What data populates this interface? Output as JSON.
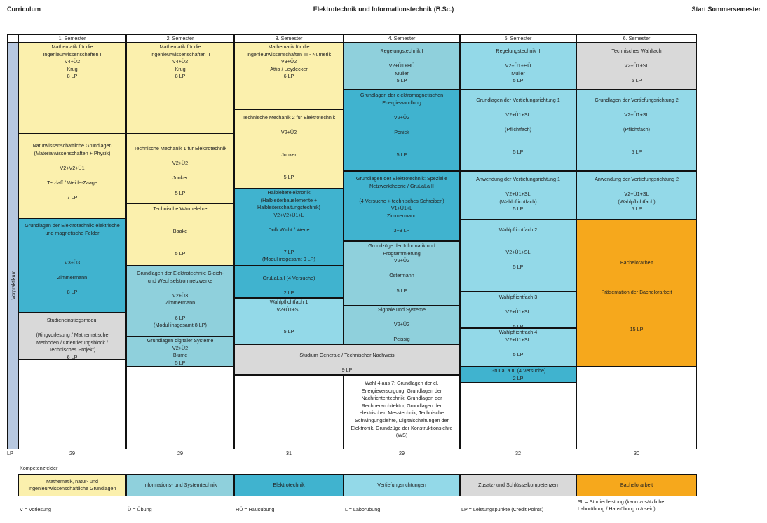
{
  "header": {
    "left": "Curriculum",
    "center": "Elektrotechnik und Informationstechnik (B.Sc.)",
    "right": "Start Sommersemester"
  },
  "semesters": [
    "1. Semester",
    "2. Semester",
    "3. Semester",
    "4. Semester",
    "5. Semester",
    "6. Semester"
  ],
  "vorpraktikum": "Vorpraktikum",
  "lp_label": "LP",
  "lp_totals": [
    "29",
    "29",
    "31",
    "29",
    "32",
    "30"
  ],
  "modules": {
    "s1_math": "Mathematik für die\nIngenieurwissenschaften I\nV4+Ü2\nKrug\n8 LP",
    "s1_natur": "Naturwissenschaftliche Grundlagen\n(Materialwissenschaften + Physik)\n\nV2+V2+Ü1\n\nTetzlaff / Weide-Zaage\n\n7 LP",
    "s1_get": "Grundlagen der Elektrotechnik: elektrische\nund magnetische Felder\n\n\n\nV3+Ü3\n\nZimmermann\n\n8 LP",
    "s1_stud": "Studieneinstiegsmodul\n\n(Ringvorlesung / Mathematische\nMethoden / Orientierungsblock /\nTechnisches Projekt)\n6 LP",
    "s2_math": "Mathematik für die\nIngenieurwissenschaften II\nV4+Ü2\nKrug\n8 LP",
    "s2_tm1": "Technische Mechanik 1 für Elektrotechnik\n\nV2+Ü2\n\nJunker\n\n5 LP",
    "s2_waerme": "Technische Wärmelehre\n\n\nBaake\n\n\n5 LP",
    "s2_gleich": "Grundlagen der Elektrotechnik: Gleich-\nund Wechselstromnetzwerke\n\nV2+Ü3\nZimmermann\n\n6 LP\n(Modul insgesamt 8 LP)",
    "s2_digital": "Grundlagen digitaler Systeme\nV2+Ü2\nBlume\n5 LP",
    "s3_math": "Mathematik für die\nIngenieurwissenschaften III - Numerik\nV3+Ü2\nAttia / Leydecker\n6 LP",
    "s3_tm2": "Technische Mechanik 2 für Elektrotechnik\n\nV2+Ü2\n\n\nJunker\n\n\n5 LP",
    "s3_halbleiter": "Halbleiterelektronik\n(Halbleiterbauelemente +\nHalbleiterschaltungstechnik)\nV2+V2+Ü1+L\n\nDoll/ Wicht / Werle\n\n\n7 LP\n(Modul insgesamt 9 LP)",
    "s3_grulala1": "GruLaLa I (4 Versuche)\n\n2 LP",
    "s3_wpf1": "Wahlpflichtfach 1\nV2+Ü1+SL\n\n\n5 LP",
    "s34_studium": "Studium Generale / Technischer Nachweis\n\n9 LP",
    "s4_regel": "Regelungstechnik I\n\nV2+Ü1+HÜ\nMüller\n5 LP",
    "s4_emag": "Grundlagen der elektromagnetischen\nEnergiewandlung\n\nV2+Ü2\n\nPonick\n\n\n5 LP",
    "s4_netzwerk": "Grundlagen der Elektrotechnik: Spezielle\nNetzwerktheorie / GruLaLa II\n\n(4 Versuche + technisches Schreiben)\nV1+Ü1+L\nZimmermann\n\n3+3 LP",
    "s4_info": "Grundzüge der Informatik und\nProgrammierung\nV2+Ü2\n\nOstermann\n\n5 LP",
    "s4_signale": "Signale und Systeme\n\nV2+Ü2\n\nPeissig\n5 LP",
    "s4_wahl": "Wahl 4 aus 7: Grundlagen der el.\nEnergieversorgung, Grundlagen der\nNachrichtentechnik, Grundlagen der\nRechnerarchitektur, Grundlagen der\nelektrischen Messtechnik, Technische\nSchwingungslehre, Digitalschaltungen der\nElektronik, Grundzüge der Konstruktionslehre\n(WS)",
    "s5_regel2": "Regelungstechnik II\n\nV2+Ü1+HÜ\nMüller\n5 LP",
    "s5_vert1": "Grundlagen der Vertiefungsrichtung 1\n\nV2+Ü1+SL\n\n(Pflichtfach)\n\n\n5 LP",
    "s5_anw1": "Anwendung der Vertiefungsrichtung 1\n\nV2+Ü1+SL\n(Wahlpflichtfach)\n5 LP",
    "s5_wpf2": "Wahlpflichtfach 2\n\n\nV2+Ü1+SL\n\n5 LP",
    "s5_wpf3": "Wahlpflichtfach 3\n\nV2+Ü1+SL\n\n5 LP",
    "s5_wpf4": "Wahlpflichtfach 4\nV2+Ü1+SL\n\n5 LP",
    "s5_grulala3": "GruLaLa III (4 Versuche)\n2 LP",
    "s6_tech": "Technisches Wahlfach\n\nV2+Ü1+SL\n\n5 LP",
    "s6_vert2": "Grundlagen der Vertiefungsrichtung 2\n\nV2+Ü1+SL\n\n(Pflichtfach)\n\n\n5 LP",
    "s6_anw2": "Anwendung der Vertiefungsrichtung 2\n\nV2+Ü1+SL\n(Wahlpflichtfach)\n5 LP",
    "s6_bachelor": "Bachelorarbeit\n\n\n\nPräsentation der Bachelorarbeit\n\n\n\n\n15 LP"
  },
  "legend": {
    "title": "Kompetenzfelder",
    "items": [
      {
        "label": "Mathematik, natur- und\ningenieurwissenschaftliche Grundlagen",
        "color": "#fbf0ad"
      },
      {
        "label": "Informations- und Systemtechnik",
        "color": "#8fd0dc"
      },
      {
        "label": "Elektrotechnik",
        "color": "#40b3cf"
      },
      {
        "label": "Vertiefungsrichtungen",
        "color": "#93d9e8"
      },
      {
        "label": "Zusatz- und Schlüsselkompetenzen",
        "color": "#d9d9d9"
      },
      {
        "label": "Bachelorarbeit",
        "color": "#f6a81c"
      }
    ]
  },
  "abbreviations": [
    "V = Vorlesung",
    "Ü = Übung",
    "HÜ = Hausübung",
    "L = Laborübung",
    "LP = Leistungspunkte (Credit Points)",
    "SL = Studienleistung (kann zusätzliche\nLaborübung / Hausübung o.ä sein)"
  ]
}
